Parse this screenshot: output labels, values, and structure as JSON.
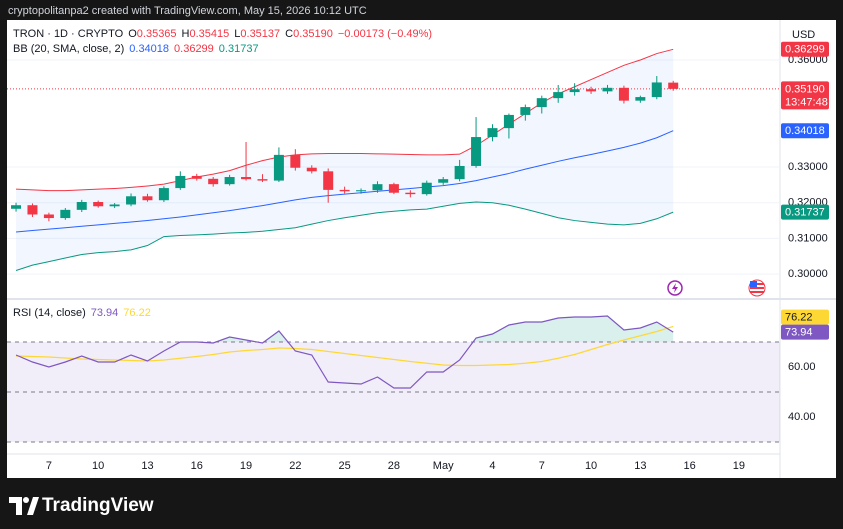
{
  "header": {
    "caption": "cryptopolitanpa2 created with TradingView.com, May 15, 2026 10:12 UTC",
    "currency": "USD",
    "brand": "TradingView"
  },
  "chart_data": [
    {
      "type": "candlestick",
      "legend": {
        "title": "TRON · 1D · CRYPTO",
        "fields": [
          {
            "label": "O",
            "value": "0.35365"
          },
          {
            "label": "H",
            "value": "0.35415"
          },
          {
            "label": "L",
            "value": "0.35137"
          },
          {
            "label": "C",
            "value": "0.35190"
          }
        ],
        "change": "−0.00173 (−0.49%)"
      },
      "legend_color": "#f23645",
      "indicator_legend": {
        "title": "BB (20, SMA, close, 2)",
        "values": [
          "0.34018",
          "0.36299",
          "0.31737"
        ]
      },
      "x": [
        0,
        1,
        2,
        3,
        4,
        5,
        6,
        7,
        8,
        9,
        10,
        11,
        12,
        13,
        14,
        15,
        16,
        17,
        18,
        19,
        20,
        21,
        22,
        23,
        24,
        25,
        26,
        27,
        28,
        29,
        30,
        31,
        32,
        33,
        34,
        35,
        36,
        37,
        38,
        39,
        40
      ],
      "open": [
        0.3183,
        0.3193,
        0.3167,
        0.3157,
        0.318,
        0.3202,
        0.319,
        0.3195,
        0.3218,
        0.3207,
        0.3241,
        0.3275,
        0.3267,
        0.3252,
        0.3272,
        0.3266,
        0.3262,
        0.3334,
        0.3298,
        0.3288,
        0.3236,
        0.3232,
        0.3235,
        0.3252,
        0.3228,
        0.3224,
        0.3256,
        0.3266,
        0.3303,
        0.3384,
        0.3409,
        0.3446,
        0.3468,
        0.3493,
        0.351,
        0.3518,
        0.3512,
        0.3522,
        0.3486,
        0.3496,
        0.35365
      ],
      "high": [
        0.32,
        0.3198,
        0.3172,
        0.3185,
        0.3208,
        0.3206,
        0.3199,
        0.3226,
        0.3225,
        0.3246,
        0.3288,
        0.3281,
        0.3272,
        0.3278,
        0.337,
        0.328,
        0.3355,
        0.335,
        0.3305,
        0.3296,
        0.3245,
        0.324,
        0.326,
        0.3256,
        0.3235,
        0.3262,
        0.3272,
        0.332,
        0.344,
        0.342,
        0.345,
        0.3475,
        0.35,
        0.353,
        0.3535,
        0.3525,
        0.353,
        0.3528,
        0.35,
        0.3555,
        0.35415
      ],
      "low": [
        0.3175,
        0.316,
        0.3148,
        0.3152,
        0.3174,
        0.3186,
        0.3185,
        0.319,
        0.3203,
        0.3202,
        0.3236,
        0.3262,
        0.3245,
        0.3248,
        0.3262,
        0.3258,
        0.3258,
        0.329,
        0.3282,
        0.32,
        0.3226,
        0.3225,
        0.3228,
        0.3224,
        0.3215,
        0.322,
        0.325,
        0.326,
        0.3298,
        0.3372,
        0.338,
        0.343,
        0.345,
        0.348,
        0.35,
        0.3505,
        0.3505,
        0.3478,
        0.348,
        0.349,
        0.35137
      ],
      "close": [
        0.3193,
        0.3167,
        0.3157,
        0.318,
        0.3202,
        0.319,
        0.3195,
        0.3218,
        0.3207,
        0.3241,
        0.3275,
        0.3267,
        0.3252,
        0.3272,
        0.3266,
        0.3262,
        0.3334,
        0.3298,
        0.3288,
        0.3236,
        0.3232,
        0.3235,
        0.3252,
        0.3228,
        0.3224,
        0.3256,
        0.3266,
        0.3303,
        0.3384,
        0.3409,
        0.3446,
        0.3468,
        0.3493,
        0.351,
        0.3518,
        0.3512,
        0.3522,
        0.3486,
        0.3496,
        0.3537,
        0.3519
      ],
      "up_color": "#089981",
      "down_color": "#f23645",
      "series": [
        {
          "color": "#2962ff",
          "values": [
            0.3118,
            0.3122,
            0.3126,
            0.313,
            0.3134,
            0.3138,
            0.3142,
            0.3146,
            0.315,
            0.3155,
            0.316,
            0.3166,
            0.3172,
            0.3178,
            0.3185,
            0.3192,
            0.32,
            0.3208,
            0.3215,
            0.322,
            0.3224,
            0.3228,
            0.3232,
            0.3236,
            0.324,
            0.3244,
            0.3248,
            0.3254,
            0.3262,
            0.3272,
            0.3282,
            0.3294,
            0.3305,
            0.3316,
            0.3326,
            0.3335,
            0.3345,
            0.3355,
            0.3367,
            0.3382,
            0.34018
          ]
        },
        {
          "color": "#f23645",
          "values": [
            0.3238,
            0.3236,
            0.3234,
            0.3234,
            0.3236,
            0.3238,
            0.324,
            0.3243,
            0.3247,
            0.3252,
            0.3262,
            0.3272,
            0.328,
            0.329,
            0.3305,
            0.3318,
            0.3328,
            0.3334,
            0.3337,
            0.3338,
            0.3338,
            0.3338,
            0.3337,
            0.3336,
            0.3335,
            0.3334,
            0.3334,
            0.3336,
            0.336,
            0.339,
            0.342,
            0.345,
            0.348,
            0.3505,
            0.3525,
            0.3545,
            0.3565,
            0.3585,
            0.36,
            0.3618,
            0.36299
          ]
        },
        {
          "color": "#089981",
          "values": [
            0.301,
            0.3025,
            0.3035,
            0.3045,
            0.3055,
            0.306,
            0.3063,
            0.3068,
            0.308,
            0.3105,
            0.3108,
            0.311,
            0.3112,
            0.3115,
            0.3117,
            0.312,
            0.3125,
            0.313,
            0.314,
            0.315,
            0.3158,
            0.3165,
            0.3172,
            0.3176,
            0.318,
            0.3182,
            0.319,
            0.3198,
            0.3202,
            0.32,
            0.3193,
            0.3182,
            0.317,
            0.3158,
            0.315,
            0.3145,
            0.314,
            0.3138,
            0.3142,
            0.3155,
            0.31737
          ]
        }
      ],
      "band_fill": "rgba(41,98,255,0.06)",
      "xlim": [
        -0.55,
        46.5
      ],
      "ylim": [
        0.2933,
        0.3712
      ],
      "yticks": [
        {
          "value": 0.3,
          "label": "0.30000"
        },
        {
          "value": 0.31,
          "label": "0.31000"
        },
        {
          "value": 0.32,
          "label": "0.32000"
        },
        {
          "value": 0.33,
          "label": "0.33000"
        },
        {
          "value": 0.36,
          "label": "0.36000"
        }
      ],
      "grid": true,
      "price_labels": [
        {
          "value": 0.36299,
          "label": "0.36299",
          "color": "#f23645"
        },
        {
          "value": 0.3519,
          "label": "0.35190",
          "countdown": "13:47:48",
          "color": "#f23645"
        },
        {
          "value": 0.34018,
          "label": "0.34018",
          "color": "#2962ff"
        },
        {
          "value": 0.31737,
          "label": "0.31737",
          "color": "#089981"
        }
      ]
    },
    {
      "type": "line",
      "legend": {
        "title": "RSI (14, close)",
        "values": [
          "73.94",
          "76.22"
        ]
      },
      "x": [
        0,
        1,
        2,
        3,
        4,
        5,
        6,
        7,
        8,
        9,
        10,
        11,
        12,
        13,
        14,
        15,
        16,
        17,
        18,
        19,
        20,
        21,
        22,
        23,
        24,
        25,
        26,
        27,
        28,
        29,
        30,
        31,
        32,
        33,
        34,
        35,
        36,
        37,
        38,
        39,
        40
      ],
      "series": [
        {
          "color": "#7e57c2",
          "values": [
            64.8,
            62,
            60,
            62,
            64.4,
            62,
            62,
            64.8,
            62.4,
            66.4,
            70,
            70,
            69.6,
            72,
            70.8,
            69.6,
            74.4,
            66.4,
            64.8,
            54,
            53.6,
            53.2,
            56,
            51.6,
            51.6,
            58,
            58,
            62.8,
            71.6,
            73.2,
            76.8,
            78,
            78,
            79.6,
            80,
            80,
            80.4,
            74.8,
            75.6,
            78,
            73.94
          ]
        },
        {
          "color": "#fdd835",
          "values": [
            64.4,
            64.2,
            64,
            63.6,
            63.2,
            63,
            62.8,
            62.6,
            62.4,
            62.8,
            63.5,
            64.2,
            65,
            66,
            66.6,
            67,
            67.6,
            67.4,
            67,
            66.2,
            65.4,
            64.6,
            63.8,
            63,
            62.2,
            61.5,
            60.8,
            60.6,
            60.6,
            60.8,
            61,
            61.5,
            62.2,
            63.5,
            65,
            67,
            69,
            70.8,
            72.5,
            74.2,
            76.22
          ]
        }
      ],
      "levels": [
        30,
        50,
        70
      ],
      "level_fill": "rgba(126,87,194,0.1)",
      "overbought_fill": "rgba(8,153,129,0.15)",
      "xlim": [
        -0.55,
        46.5
      ],
      "ylim": [
        25.6,
        86.8
      ],
      "yticks": [
        {
          "value": 40,
          "label": "40.00"
        },
        {
          "value": 60,
          "label": "60.00"
        }
      ],
      "xticks": [
        {
          "value": 2,
          "label": "7"
        },
        {
          "value": 5,
          "label": "10"
        },
        {
          "value": 8,
          "label": "13"
        },
        {
          "value": 11,
          "label": "16"
        },
        {
          "value": 14,
          "label": "19"
        },
        {
          "value": 17,
          "label": "22"
        },
        {
          "value": 20,
          "label": "25"
        },
        {
          "value": 23,
          "label": "28"
        },
        {
          "value": 26,
          "label": "May"
        },
        {
          "value": 29,
          "label": "4"
        },
        {
          "value": 32,
          "label": "7"
        },
        {
          "value": 35,
          "label": "10"
        },
        {
          "value": 38,
          "label": "13"
        },
        {
          "value": 41,
          "label": "16"
        },
        {
          "value": 44,
          "label": "19"
        }
      ],
      "price_labels": [
        {
          "value": 76.22,
          "label": "76.22",
          "color": "#fdd835",
          "text_color": "#131722"
        },
        {
          "value": 73.94,
          "label": "73.94",
          "color": "#7e57c2",
          "text_color": "#ffffff"
        }
      ]
    }
  ]
}
